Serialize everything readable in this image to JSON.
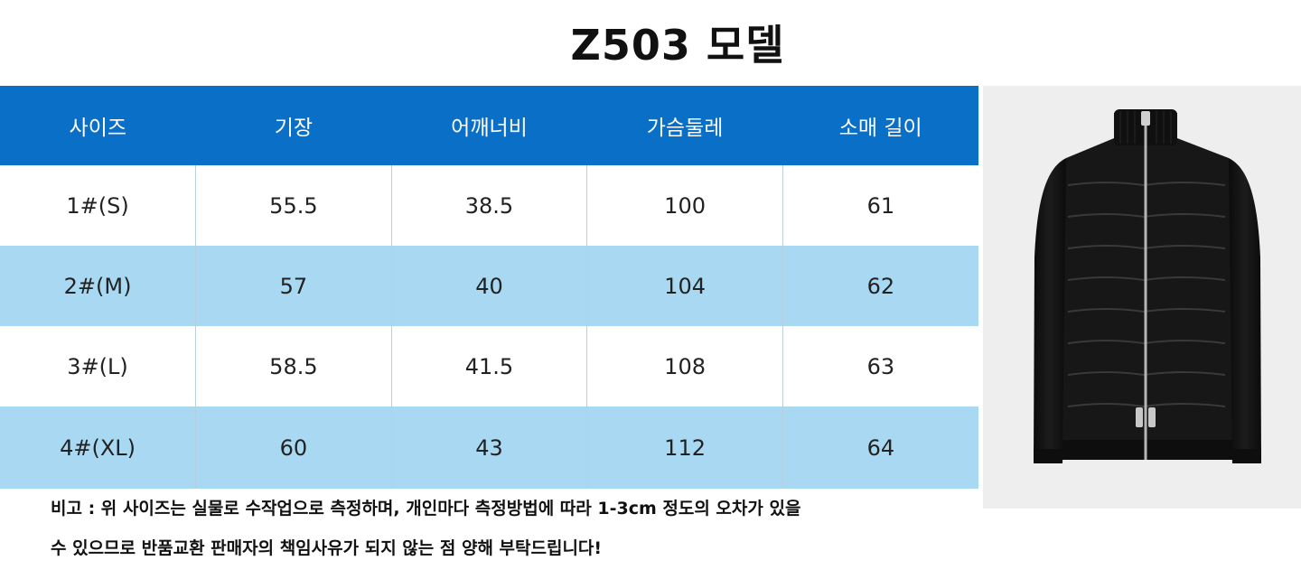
{
  "title": "Z503 모델",
  "table": {
    "headers": [
      "사이즈",
      "기장",
      "어깨너비",
      "가슴둘레",
      "소매 길이"
    ],
    "rows": [
      [
        "1#(S)",
        "55.5",
        "38.5",
        "100",
        "61"
      ],
      [
        "2#(M)",
        "57",
        "40",
        "104",
        "62"
      ],
      [
        "3#(L)",
        "58.5",
        "41.5",
        "108",
        "63"
      ],
      [
        "4#(XL)",
        "60",
        "43",
        "112",
        "64"
      ]
    ]
  },
  "product_image": {
    "icon": "jacket-icon",
    "colors": {
      "background": "#eeeeee",
      "jacket": "#151515",
      "zipper": "#b5b5b5"
    }
  },
  "note": {
    "line1": "비고 : 위 사이즈는 실물로 수작업으로 측정하며, 개인마다 측정방법에 따라 1-3cm 정도의 오차가 있을",
    "line2": "수 있으므로 반품교환 판매자의 책임사유가 되지 않는 점 양해 부탁드립니다!"
  },
  "colors": {
    "header_bg": "#0a6fc7",
    "stripe_bg": "#a9d9f2",
    "header_text": "#ffffff"
  }
}
